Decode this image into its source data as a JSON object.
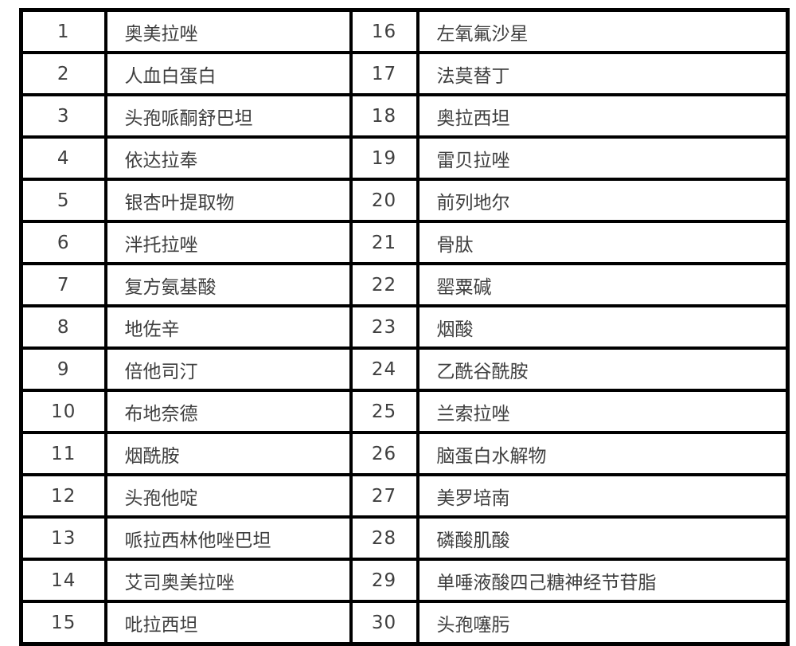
{
  "table": {
    "description": "drug-name-list-table",
    "highlight_color": "#ffff00",
    "border_color": "#000000",
    "text_color": "#3f3f3f",
    "rows": [
      {
        "left": {
          "num": "1",
          "name": "奥美拉唑",
          "highlighted": false
        },
        "right": {
          "num": "16",
          "name": "左氧氟沙星",
          "highlighted": false
        }
      },
      {
        "left": {
          "num": "2",
          "name": "人血白蛋白",
          "highlighted": false
        },
        "right": {
          "num": "17",
          "name": "法莫替丁",
          "highlighted": false
        }
      },
      {
        "left": {
          "num": "3",
          "name": "头孢哌酮舒巴坦",
          "highlighted": false
        },
        "right": {
          "num": "18",
          "name": "奥拉西坦",
          "highlighted": true
        }
      },
      {
        "left": {
          "num": "4",
          "name": "依达拉奉",
          "highlighted": true
        },
        "right": {
          "num": "19",
          "name": "雷贝拉唑",
          "highlighted": false
        }
      },
      {
        "left": {
          "num": "5",
          "name": "银杏叶提取物",
          "highlighted": false
        },
        "right": {
          "num": "20",
          "name": "前列地尔",
          "highlighted": true
        }
      },
      {
        "left": {
          "num": "6",
          "name": "泮托拉唑",
          "highlighted": false
        },
        "right": {
          "num": "21",
          "name": "骨肽",
          "highlighted": true
        }
      },
      {
        "left": {
          "num": "7",
          "name": "复方氨基酸",
          "highlighted": false
        },
        "right": {
          "num": "22",
          "name": "罂粟碱",
          "highlighted": false
        }
      },
      {
        "left": {
          "num": "8",
          "name": "地佐辛",
          "highlighted": false
        },
        "right": {
          "num": "23",
          "name": "烟酸",
          "highlighted": false
        }
      },
      {
        "left": {
          "num": "9",
          "name": "倍他司汀",
          "highlighted": false
        },
        "right": {
          "num": "24",
          "name": "乙酰谷酰胺",
          "highlighted": false
        }
      },
      {
        "left": {
          "num": "10",
          "name": "布地奈德",
          "highlighted": false
        },
        "right": {
          "num": "25",
          "name": "兰索拉唑",
          "highlighted": false
        }
      },
      {
        "left": {
          "num": "11",
          "name": "烟酰胺",
          "highlighted": false
        },
        "right": {
          "num": "26",
          "name": "脑蛋白水解物",
          "highlighted": true
        }
      },
      {
        "left": {
          "num": "12",
          "name": "头孢他啶",
          "highlighted": false
        },
        "right": {
          "num": "27",
          "name": "美罗培南",
          "highlighted": false
        }
      },
      {
        "left": {
          "num": "13",
          "name": "哌拉西林他唑巴坦",
          "highlighted": false
        },
        "right": {
          "num": "28",
          "name": "磷酸肌酸",
          "highlighted": true
        }
      },
      {
        "left": {
          "num": "14",
          "name": "艾司奥美拉唑",
          "highlighted": false
        },
        "right": {
          "num": "29",
          "name": "单唾液酸四己糖神经节苷脂",
          "highlighted": true
        }
      },
      {
        "left": {
          "num": "15",
          "name": "吡拉西坦",
          "highlighted": false
        },
        "right": {
          "num": "30",
          "name": "头孢噻肟",
          "highlighted": false
        }
      }
    ]
  }
}
